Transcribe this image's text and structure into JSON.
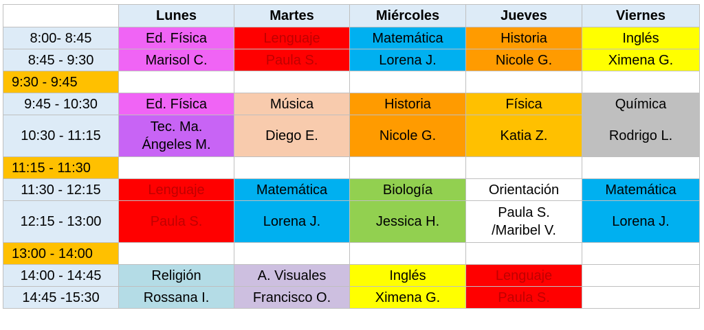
{
  "colors": {
    "header_bg": "#ddebf7",
    "break_bg": "#ffc000",
    "pink": "#f064f5",
    "red": "#ff0000",
    "blue": "#00b0f0",
    "orange": "#ff9b00",
    "yellow": "#ffff00",
    "peach": "#f8cbad",
    "amber": "#ffc000",
    "gray": "#bfbfbf",
    "violet": "#c864f5",
    "green": "#92d050",
    "light_blue": "#b4dce6",
    "lavender": "#cdbfe0",
    "white": "#ffffff"
  },
  "days": [
    "Lunes",
    "Martes",
    "Miércoles",
    "Jueves",
    "Viernes"
  ],
  "rows": [
    {
      "time": "8:00- 8:45",
      "kind": "normal",
      "cells": [
        {
          "text": "Ed. Física",
          "bg": "pink",
          "fg": "#000000"
        },
        {
          "text": "Lenguaje",
          "bg": "red",
          "fg": "#c00000"
        },
        {
          "text": "Matemática",
          "bg": "blue",
          "fg": "#000000"
        },
        {
          "text": "Historia",
          "bg": "orange",
          "fg": "#000000"
        },
        {
          "text": "Inglés",
          "bg": "yellow",
          "fg": "#000000"
        }
      ]
    },
    {
      "time": "8:45 - 9:30",
      "kind": "normal",
      "cells": [
        {
          "text": "Marisol C.",
          "bg": "pink",
          "fg": "#000000"
        },
        {
          "text": "Paula S.",
          "bg": "red",
          "fg": "#c00000"
        },
        {
          "text": "Lorena J.",
          "bg": "blue",
          "fg": "#000000"
        },
        {
          "text": "Nicole G.",
          "bg": "orange",
          "fg": "#000000"
        },
        {
          "text": "Ximena G.",
          "bg": "yellow",
          "fg": "#000000"
        }
      ]
    },
    {
      "time": "9:30 - 9:45",
      "kind": "break",
      "cells": [
        {
          "text": "",
          "bg": "white",
          "fg": "#000000"
        },
        {
          "text": "",
          "bg": "white",
          "fg": "#000000"
        },
        {
          "text": "",
          "bg": "white",
          "fg": "#000000"
        },
        {
          "text": "",
          "bg": "white",
          "fg": "#000000"
        },
        {
          "text": "",
          "bg": "white",
          "fg": "#000000"
        }
      ]
    },
    {
      "time": "9:45 - 10:30",
      "kind": "normal",
      "cells": [
        {
          "text": "Ed. Física",
          "bg": "pink",
          "fg": "#000000"
        },
        {
          "text": "Música",
          "bg": "peach",
          "fg": "#000000"
        },
        {
          "text": "Historia",
          "bg": "orange",
          "fg": "#000000"
        },
        {
          "text": "Física",
          "bg": "amber",
          "fg": "#000000"
        },
        {
          "text": "Química",
          "bg": "gray",
          "fg": "#000000"
        }
      ]
    },
    {
      "time": "10:30 - 11:15",
      "kind": "tall",
      "cells": [
        {
          "text": "Tec. Ma.\nÁngeles M.",
          "bg": "violet",
          "fg": "#000000"
        },
        {
          "text": "Diego E.",
          "bg": "peach",
          "fg": "#000000"
        },
        {
          "text": "Nicole G.",
          "bg": "orange",
          "fg": "#000000"
        },
        {
          "text": "Katia Z.",
          "bg": "amber",
          "fg": "#000000"
        },
        {
          "text": "Rodrigo L.",
          "bg": "gray",
          "fg": "#000000"
        }
      ]
    },
    {
      "time": "11:15 - 11:30",
      "kind": "break",
      "cells": [
        {
          "text": "",
          "bg": "white",
          "fg": "#000000"
        },
        {
          "text": "",
          "bg": "white",
          "fg": "#000000"
        },
        {
          "text": "",
          "bg": "white",
          "fg": "#000000"
        },
        {
          "text": "",
          "bg": "white",
          "fg": "#000000"
        },
        {
          "text": "",
          "bg": "white",
          "fg": "#000000"
        }
      ]
    },
    {
      "time": "11:30 - 12:15",
      "kind": "normal",
      "cells": [
        {
          "text": "Lenguaje",
          "bg": "red",
          "fg": "#c00000"
        },
        {
          "text": "Matemática",
          "bg": "blue",
          "fg": "#000000"
        },
        {
          "text": "Biología",
          "bg": "green",
          "fg": "#000000"
        },
        {
          "text": "Orientación",
          "bg": "white",
          "fg": "#000000"
        },
        {
          "text": "Matemática",
          "bg": "blue",
          "fg": "#000000"
        }
      ]
    },
    {
      "time": "12:15 - 13:00",
      "kind": "tall",
      "cells": [
        {
          "text": "Paula S.",
          "bg": "red",
          "fg": "#c00000"
        },
        {
          "text": "Lorena J.",
          "bg": "blue",
          "fg": "#000000"
        },
        {
          "text": "Jessica H.",
          "bg": "green",
          "fg": "#000000"
        },
        {
          "text": "Paula S.\n/Maribel V.",
          "bg": "white",
          "fg": "#000000"
        },
        {
          "text": "Lorena J.",
          "bg": "blue",
          "fg": "#000000"
        }
      ]
    },
    {
      "time": "13:00 - 14:00",
      "kind": "break",
      "cells": [
        {
          "text": "",
          "bg": "white",
          "fg": "#000000"
        },
        {
          "text": "",
          "bg": "white",
          "fg": "#000000"
        },
        {
          "text": "",
          "bg": "white",
          "fg": "#000000"
        },
        {
          "text": "",
          "bg": "white",
          "fg": "#000000"
        },
        {
          "text": "",
          "bg": "white",
          "fg": "#000000"
        }
      ]
    },
    {
      "time": "14:00 - 14:45",
      "kind": "normal",
      "cells": [
        {
          "text": "Religión",
          "bg": "light_blue",
          "fg": "#000000"
        },
        {
          "text": "A. Visuales",
          "bg": "lavender",
          "fg": "#000000"
        },
        {
          "text": "Inglés",
          "bg": "yellow",
          "fg": "#000000"
        },
        {
          "text": "Lenguaje",
          "bg": "red",
          "fg": "#c00000"
        },
        {
          "text": "",
          "bg": "white",
          "fg": "#000000"
        }
      ]
    },
    {
      "time": "14:45 -15:30",
      "kind": "normal",
      "cells": [
        {
          "text": "Rossana I.",
          "bg": "light_blue",
          "fg": "#000000"
        },
        {
          "text": "Francisco O.",
          "bg": "lavender",
          "fg": "#000000"
        },
        {
          "text": "Ximena G.",
          "bg": "yellow",
          "fg": "#000000"
        },
        {
          "text": "Paula S.",
          "bg": "red",
          "fg": "#c00000"
        },
        {
          "text": "",
          "bg": "white",
          "fg": "#000000"
        }
      ]
    }
  ]
}
